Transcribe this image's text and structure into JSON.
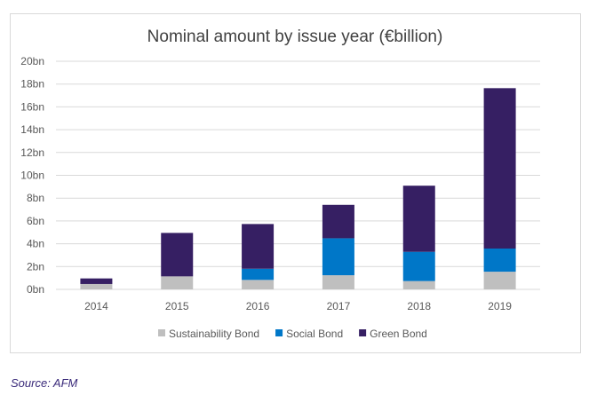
{
  "chart_data": {
    "type": "bar",
    "stacked": true,
    "title": "Nominal amount by issue year (€billion)",
    "xlabel": "",
    "ylabel": "",
    "categories": [
      "2014",
      "2015",
      "2016",
      "2017",
      "2018",
      "2019"
    ],
    "series": [
      {
        "name": "Sustainability Bond",
        "color": "#bfbfbf",
        "values": [
          0.47,
          1.14,
          0.83,
          1.24,
          0.73,
          1.55
        ]
      },
      {
        "name": "Social Bond",
        "color": "#0077c8",
        "values": [
          0,
          0,
          0.98,
          3.24,
          2.56,
          2.03
        ]
      },
      {
        "name": "Green Bond",
        "color": "#361f63",
        "values": [
          0.49,
          3.81,
          3.92,
          2.93,
          5.8,
          14.06
        ]
      }
    ],
    "ylim": [
      0,
      20
    ],
    "yticks": [
      "0bn",
      "2bn",
      "4bn",
      "6bn",
      "8bn",
      "10bn",
      "12bn",
      "14bn",
      "16bn",
      "18bn",
      "20bn"
    ],
    "grid": true,
    "legend": "bottom"
  },
  "source": "Source: AFM"
}
